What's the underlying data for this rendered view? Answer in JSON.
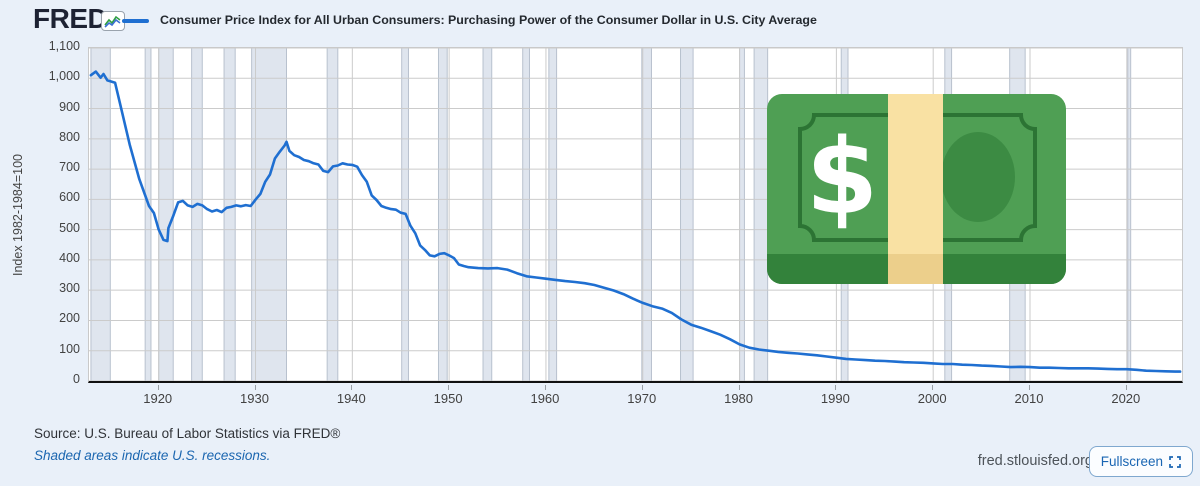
{
  "header": {
    "logo_text": "FRED",
    "logo_registered": "®",
    "chart_icon_name": "line-chart-icon",
    "legend_label": "Consumer Price Index for All Urban Consumers: Purchasing Power of the Consumer Dollar in U.S. City Average"
  },
  "chart_data": {
    "type": "line",
    "title": "Consumer Price Index for All Urban Consumers: Purchasing Power of the Consumer Dollar in U.S. City Average",
    "ylabel": "Index 1982-1984=100",
    "xlabel": "",
    "xlim": [
      1912.8,
      2025.7
    ],
    "ylim": [
      0,
      1100
    ],
    "x_ticks": [
      1920,
      1930,
      1940,
      1950,
      1960,
      1970,
      1980,
      1990,
      2000,
      2010,
      2020
    ],
    "y_ticks": [
      0,
      100,
      200,
      300,
      400,
      500,
      600,
      700,
      800,
      900,
      1000,
      1100
    ],
    "grid": true,
    "legend_position": "top",
    "line_color": "#1f6fd1",
    "grid_color": "#cbcbcb",
    "recession_fill": "#dfe5ee",
    "recession_border": "#b8c1ce",
    "series": [
      {
        "name": "Purchasing Power of the Consumer Dollar",
        "points": [
          [
            1913,
            1010
          ],
          [
            1913.5,
            1022
          ],
          [
            1914,
            1002
          ],
          [
            1914.3,
            1014
          ],
          [
            1914.7,
            993
          ],
          [
            1915,
            990
          ],
          [
            1915.5,
            985
          ],
          [
            1916,
            917
          ],
          [
            1917,
            781
          ],
          [
            1918,
            667
          ],
          [
            1919,
            578
          ],
          [
            1919.5,
            555
          ],
          [
            1920,
            500
          ],
          [
            1920.5,
            466
          ],
          [
            1920.9,
            462
          ],
          [
            1921,
            505
          ],
          [
            1921.5,
            545
          ],
          [
            1922,
            590
          ],
          [
            1922.5,
            595
          ],
          [
            1923,
            580
          ],
          [
            1923.5,
            575
          ],
          [
            1924,
            585
          ],
          [
            1924.5,
            580
          ],
          [
            1925,
            568
          ],
          [
            1925.5,
            560
          ],
          [
            1926,
            565
          ],
          [
            1926.5,
            558
          ],
          [
            1927,
            572
          ],
          [
            1927.5,
            575
          ],
          [
            1928,
            580
          ],
          [
            1928.5,
            577
          ],
          [
            1929,
            581
          ],
          [
            1929.5,
            578
          ],
          [
            1930,
            599
          ],
          [
            1930.5,
            618
          ],
          [
            1931,
            658
          ],
          [
            1931.5,
            682
          ],
          [
            1932,
            735
          ],
          [
            1932.5,
            757
          ],
          [
            1933,
            778
          ],
          [
            1933.2,
            790
          ],
          [
            1933.5,
            760
          ],
          [
            1934,
            746
          ],
          [
            1934.5,
            740
          ],
          [
            1935,
            730
          ],
          [
            1935.5,
            726
          ],
          [
            1936,
            719
          ],
          [
            1936.5,
            715
          ],
          [
            1937,
            694
          ],
          [
            1937.5,
            690
          ],
          [
            1938,
            709
          ],
          [
            1938.5,
            712
          ],
          [
            1939,
            719
          ],
          [
            1939.5,
            715
          ],
          [
            1940,
            714
          ],
          [
            1940.5,
            708
          ],
          [
            1941,
            680
          ],
          [
            1941.5,
            658
          ],
          [
            1942,
            613
          ],
          [
            1942.5,
            598
          ],
          [
            1943,
            578
          ],
          [
            1943.5,
            572
          ],
          [
            1944,
            568
          ],
          [
            1944.5,
            566
          ],
          [
            1945,
            556
          ],
          [
            1945.5,
            552
          ],
          [
            1946,
            513
          ],
          [
            1946.5,
            488
          ],
          [
            1947,
            448
          ],
          [
            1947.5,
            433
          ],
          [
            1948,
            415
          ],
          [
            1948.5,
            412
          ],
          [
            1949,
            420
          ],
          [
            1949.5,
            422
          ],
          [
            1950,
            415
          ],
          [
            1950.5,
            406
          ],
          [
            1951,
            385
          ],
          [
            1951.5,
            380
          ],
          [
            1952,
            376
          ],
          [
            1953,
            373
          ],
          [
            1954,
            372
          ],
          [
            1955,
            373
          ],
          [
            1956,
            368
          ],
          [
            1957,
            356
          ],
          [
            1958,
            346
          ],
          [
            1959,
            342
          ],
          [
            1960,
            338
          ],
          [
            1961,
            334
          ],
          [
            1962,
            330
          ],
          [
            1963,
            327
          ],
          [
            1964,
            323
          ],
          [
            1965,
            317
          ],
          [
            1966,
            308
          ],
          [
            1967,
            299
          ],
          [
            1968,
            287
          ],
          [
            1969,
            272
          ],
          [
            1970,
            258
          ],
          [
            1971,
            247
          ],
          [
            1972,
            239
          ],
          [
            1973,
            225
          ],
          [
            1974,
            203
          ],
          [
            1975,
            186
          ],
          [
            1976,
            176
          ],
          [
            1977,
            165
          ],
          [
            1978,
            153
          ],
          [
            1979,
            138
          ],
          [
            1980,
            121
          ],
          [
            1981,
            110
          ],
          [
            1982,
            104
          ],
          [
            1983,
            100
          ],
          [
            1984,
            96
          ],
          [
            1985,
            93
          ],
          [
            1986,
            91
          ],
          [
            1987,
            88
          ],
          [
            1988,
            85
          ],
          [
            1989,
            81
          ],
          [
            1990,
            77
          ],
          [
            1991,
            73
          ],
          [
            1992,
            71
          ],
          [
            1993,
            69
          ],
          [
            1994,
            67
          ],
          [
            1995,
            66
          ],
          [
            1996,
            64
          ],
          [
            1997,
            62
          ],
          [
            1998,
            61
          ],
          [
            1999,
            60
          ],
          [
            2000,
            58
          ],
          [
            2001,
            56
          ],
          [
            2002,
            56
          ],
          [
            2003,
            54
          ],
          [
            2004,
            53
          ],
          [
            2005,
            51
          ],
          [
            2006,
            50
          ],
          [
            2007,
            48
          ],
          [
            2008,
            46
          ],
          [
            2009,
            47
          ],
          [
            2010,
            46
          ],
          [
            2011,
            44
          ],
          [
            2012,
            44
          ],
          [
            2013,
            43
          ],
          [
            2014,
            42
          ],
          [
            2015,
            42
          ],
          [
            2016,
            42
          ],
          [
            2017,
            41
          ],
          [
            2018,
            40
          ],
          [
            2019,
            39
          ],
          [
            2020,
            39
          ],
          [
            2021,
            37
          ],
          [
            2022,
            34
          ],
          [
            2023,
            33
          ],
          [
            2024,
            32
          ],
          [
            2025,
            31
          ],
          [
            2025.5,
            31
          ]
        ]
      }
    ],
    "recessions": [
      [
        1913.0,
        1915.0
      ],
      [
        1918.6,
        1919.2
      ],
      [
        1920.0,
        1921.5
      ],
      [
        1923.4,
        1924.5
      ],
      [
        1926.75,
        1927.9
      ],
      [
        1929.6,
        1933.2
      ],
      [
        1937.4,
        1938.5
      ],
      [
        1945.1,
        1945.8
      ],
      [
        1948.9,
        1949.8
      ],
      [
        1953.5,
        1954.4
      ],
      [
        1957.6,
        1958.3
      ],
      [
        1960.3,
        1961.1
      ],
      [
        1969.9,
        1970.9
      ],
      [
        1973.9,
        1975.2
      ],
      [
        1980.0,
        1980.5
      ],
      [
        1981.5,
        1982.9
      ],
      [
        1990.5,
        1991.2
      ],
      [
        2001.2,
        2001.9
      ],
      [
        2007.9,
        2009.5
      ],
      [
        2020.1,
        2020.4
      ]
    ],
    "annotations": [
      "Shaded areas indicate U.S. recessions."
    ]
  },
  "overlay": {
    "emoji_name": "dollar-banknote-emoji",
    "dollar_sign": "$",
    "colors": {
      "note_green": "#4f9f54",
      "note_bottom": "#33823b",
      "frame": "#2c7434",
      "portrait_circle": "#3c8b43",
      "strap": "#f9e1a3",
      "strap_bottom": "#eccf8b"
    }
  },
  "footer": {
    "source": "Source: U.S. Bureau of Labor Statistics via FRED®",
    "recession_note": "Shaded areas indicate U.S. recessions.",
    "site": "fred.stlouisfed.org",
    "fullscreen_label": "Fullscreen"
  },
  "colors": {
    "page_bg": "#e9f0f9",
    "plot_bg": "#ffffff",
    "logo": "#1d2233",
    "blue_text": "#1b66b0",
    "icon_line_blue": "#3b6fd4",
    "icon_line_green": "#2f9e44"
  }
}
